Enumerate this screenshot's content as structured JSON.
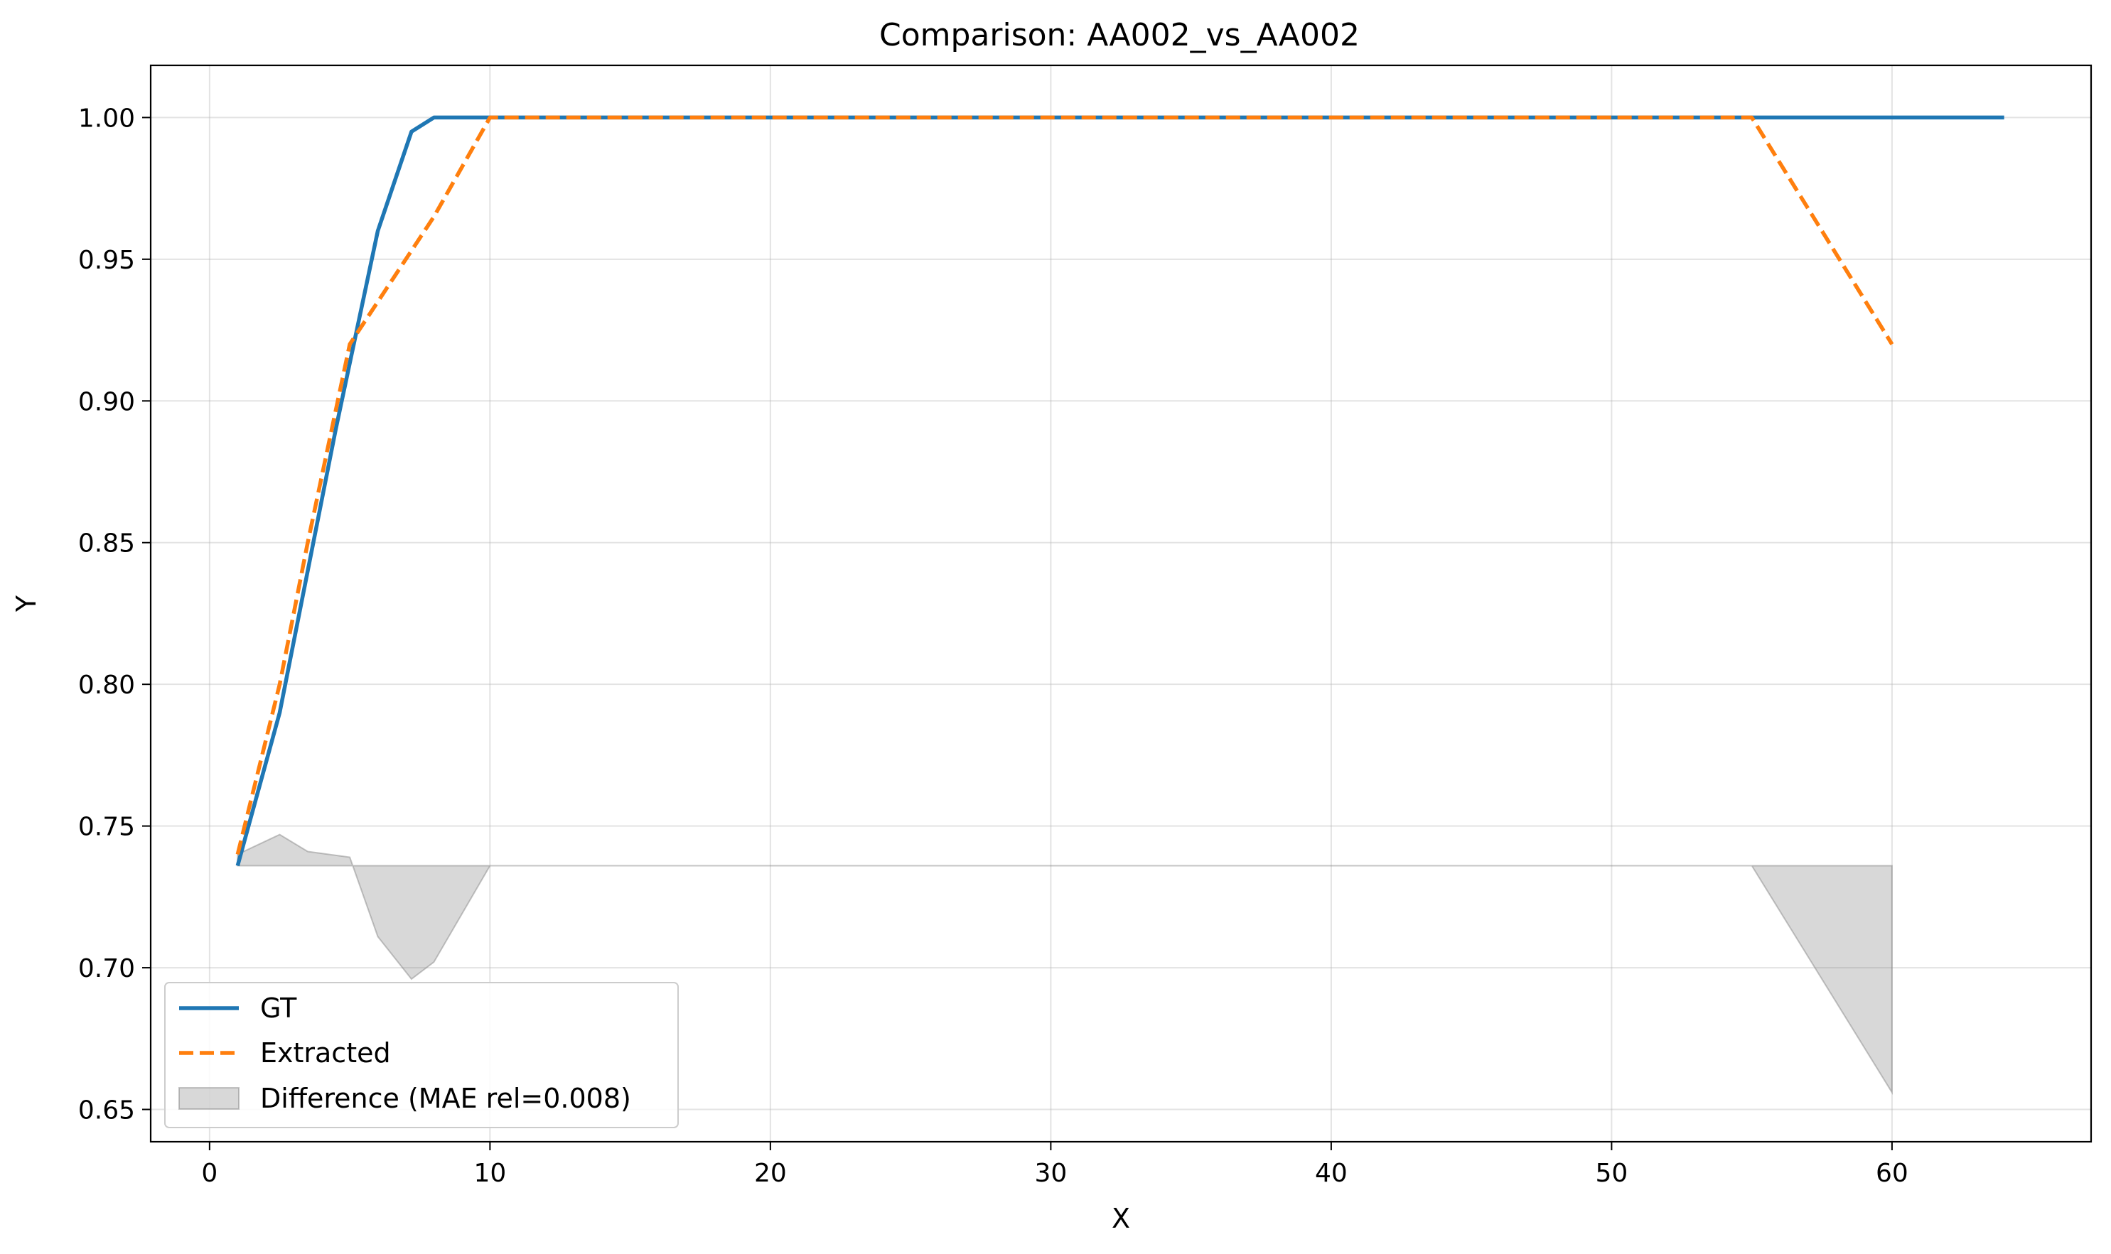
{
  "chart_data": {
    "type": "line",
    "title": "Comparison: AA002_vs_AA002",
    "xlabel": "X",
    "ylabel": "Y",
    "xlim": [
      -2.1,
      67.1
    ],
    "ylim": [
      0.6386,
      1.0184
    ],
    "xticks": [
      0,
      10,
      20,
      30,
      40,
      50,
      60
    ],
    "yticks": [
      0.65,
      0.7,
      0.75,
      0.8,
      0.85,
      0.9,
      0.95,
      1.0
    ],
    "ytick_labels": [
      "0.65",
      "0.70",
      "0.75",
      "0.80",
      "0.85",
      "0.90",
      "0.95",
      "1.00"
    ],
    "grid": true,
    "legend_position": "lower-left",
    "series": [
      {
        "name": "GT",
        "color": "#1f77b4",
        "style": "solid",
        "x": [
          1,
          2.5,
          3.5,
          4.5,
          6,
          7.2,
          8,
          10,
          20,
          30,
          40,
          50,
          55,
          60,
          64
        ],
        "y": [
          0.736,
          0.79,
          0.84,
          0.89,
          0.96,
          0.995,
          1.0,
          1.0,
          1.0,
          1.0,
          1.0,
          1.0,
          1.0,
          1.0,
          1.0
        ]
      },
      {
        "name": "Extracted",
        "color": "#ff7f0e",
        "style": "dashed",
        "x": [
          1,
          2.5,
          3.5,
          5,
          6,
          8,
          10,
          20,
          30,
          40,
          50,
          55,
          60
        ],
        "y": [
          0.74,
          0.8,
          0.85,
          0.92,
          0.935,
          0.965,
          1.0,
          1.0,
          1.0,
          1.0,
          1.0,
          1.0,
          0.92
        ]
      }
    ],
    "difference": {
      "name": "Difference (MAE rel=0.008)",
      "color": "#7f7f7f",
      "baseline": 0.736,
      "x": [
        1,
        2.5,
        3.5,
        5,
        6,
        7.2,
        8,
        10,
        20,
        30,
        40,
        50,
        55,
        60
      ],
      "y": [
        0.74,
        0.747,
        0.741,
        0.739,
        0.711,
        0.696,
        0.702,
        0.736,
        0.736,
        0.736,
        0.736,
        0.736,
        0.736,
        0.656
      ]
    }
  }
}
